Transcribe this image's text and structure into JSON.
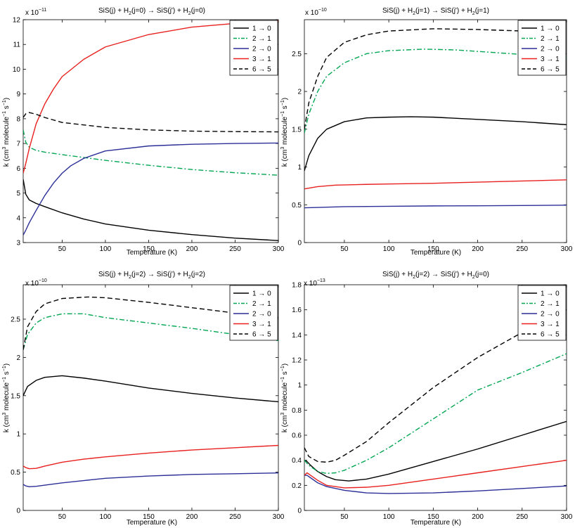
{
  "chart_data": [
    {
      "type": "line",
      "title": "SiS(j) + H2(j=0) → SiS(j') + H2(j=0)",
      "title_parts": {
        "a": "SiS(j) + H",
        "b": "2",
        "c": "(j=0) → SiS(j') + H",
        "d": "2",
        "e": "(j=0)"
      },
      "xlabel": "Temperature (K)",
      "ylabel": {
        "a": "k (cm",
        "b": "3",
        "c": " molecule",
        "d": "−1",
        "e": " s",
        "f": "−1",
        "g": ")"
      },
      "exponent": {
        "base": "x 10",
        "pow": "−11"
      },
      "xlim": [
        5,
        300
      ],
      "ylim": [
        3,
        12
      ],
      "xticks": [
        50,
        100,
        150,
        200,
        250,
        300
      ],
      "yticks": [
        3,
        4,
        5,
        6,
        7,
        8,
        9,
        10,
        11,
        12
      ],
      "ytick_labels": [
        "3",
        "4",
        "5",
        "6",
        "7",
        "8",
        "9",
        "10",
        "11",
        "12"
      ],
      "series": [
        {
          "name": "1 → 0",
          "color": "#000000",
          "dash": "solid",
          "x": [
            5,
            8,
            12,
            20,
            30,
            50,
            75,
            100,
            150,
            200,
            250,
            300
          ],
          "values": [
            5.55,
            4.95,
            4.72,
            4.58,
            4.45,
            4.2,
            3.95,
            3.75,
            3.5,
            3.32,
            3.18,
            3.08
          ]
        },
        {
          "name": "2 → 1",
          "color": "#00a651",
          "dash": "dashdot",
          "x": [
            5,
            8,
            12,
            20,
            30,
            50,
            100,
            150,
            200,
            250,
            300
          ],
          "values": [
            7.55,
            7.05,
            6.85,
            6.72,
            6.65,
            6.55,
            6.32,
            6.12,
            5.95,
            5.82,
            5.72
          ]
        },
        {
          "name": "2 → 0",
          "color": "#2b2f97",
          "dash": "solid",
          "x": [
            5,
            8,
            12,
            20,
            30,
            40,
            50,
            60,
            75,
            100,
            150,
            200,
            250,
            300
          ],
          "values": [
            3.3,
            3.5,
            3.8,
            4.3,
            4.9,
            5.4,
            5.8,
            6.1,
            6.4,
            6.7,
            6.9,
            6.97,
            7.0,
            7.02
          ]
        },
        {
          "name": "3 → 1",
          "color": "#e8201e",
          "dash": "solid",
          "x": [
            5,
            8,
            12,
            20,
            30,
            40,
            50,
            75,
            100,
            150,
            200,
            250,
            300
          ],
          "values": [
            5.8,
            6.2,
            6.8,
            7.8,
            8.6,
            9.2,
            9.7,
            10.4,
            10.9,
            11.4,
            11.7,
            11.85,
            11.95
          ]
        },
        {
          "name": "6 → 5",
          "color": "#000000",
          "dash": "dashed",
          "x": [
            5,
            8,
            12,
            20,
            30,
            50,
            100,
            150,
            200,
            250,
            300
          ],
          "values": [
            8.05,
            8.2,
            8.25,
            8.18,
            8.05,
            7.85,
            7.65,
            7.55,
            7.5,
            7.48,
            7.47
          ]
        }
      ]
    },
    {
      "type": "line",
      "title": "SiS(j) + H2(j=1) → SiS(j') + H2(j=1)",
      "title_parts": {
        "a": "SiS(j) + H",
        "b": "2",
        "c": "(j=1) → SiS(j') + H",
        "d": "2",
        "e": "(j=1)"
      },
      "xlabel": "Temperature (K)",
      "ylabel": {
        "a": "k (cm",
        "b": "3",
        "c": " molecule",
        "d": "−1",
        "e": " s",
        "f": "−1",
        "g": ")"
      },
      "exponent": {
        "base": "x 10",
        "pow": "−10"
      },
      "xlim": [
        5,
        300
      ],
      "ylim": [
        0,
        2.95
      ],
      "xticks": [
        50,
        100,
        150,
        200,
        250,
        300
      ],
      "yticks": [
        0,
        0.5,
        1,
        1.5,
        2,
        2.5
      ],
      "ytick_labels": [
        "0",
        "0.5",
        "1",
        "1.5",
        "2",
        "2.5"
      ],
      "series": [
        {
          "name": "1 → 0",
          "color": "#000000",
          "dash": "solid",
          "x": [
            5,
            10,
            20,
            30,
            50,
            75,
            100,
            125,
            150,
            200,
            250,
            300
          ],
          "values": [
            0.95,
            1.15,
            1.38,
            1.5,
            1.6,
            1.65,
            1.66,
            1.665,
            1.66,
            1.63,
            1.6,
            1.56
          ]
        },
        {
          "name": "2 → 1",
          "color": "#00a651",
          "dash": "dashdot",
          "x": [
            5,
            10,
            20,
            30,
            50,
            75,
            100,
            140,
            175,
            200,
            250,
            300
          ],
          "values": [
            1.45,
            1.7,
            2.0,
            2.2,
            2.38,
            2.5,
            2.54,
            2.56,
            2.55,
            2.53,
            2.49,
            2.45
          ]
        },
        {
          "name": "2 → 0",
          "color": "#2b2f97",
          "dash": "solid",
          "x": [
            5,
            20,
            50,
            100,
            150,
            200,
            250,
            300
          ],
          "values": [
            0.46,
            0.465,
            0.475,
            0.48,
            0.485,
            0.487,
            0.49,
            0.495
          ]
        },
        {
          "name": "3 → 1",
          "color": "#e8201e",
          "dash": "solid",
          "x": [
            5,
            20,
            40,
            75,
            100,
            150,
            200,
            250,
            300
          ],
          "values": [
            0.71,
            0.74,
            0.76,
            0.77,
            0.775,
            0.785,
            0.8,
            0.815,
            0.83
          ]
        },
        {
          "name": "6 → 5",
          "color": "#000000",
          "dash": "dashed",
          "x": [
            5,
            10,
            20,
            30,
            50,
            75,
            100,
            150,
            200,
            250,
            300
          ],
          "values": [
            1.5,
            1.85,
            2.2,
            2.45,
            2.65,
            2.75,
            2.8,
            2.83,
            2.82,
            2.8,
            2.77
          ]
        }
      ]
    },
    {
      "type": "line",
      "title": "SiS(j) + H2(j=2) → SiS(j') + H2(j=2)",
      "title_parts": {
        "a": "SiS(j) + H",
        "b": "2",
        "c": "(j=2) → SiS(j') + H",
        "d": "2",
        "e": "(j=2)"
      },
      "xlabel": "Temperature (K)",
      "ylabel": {
        "a": "k (cm",
        "b": "3",
        "c": " molecule",
        "d": "−1",
        "e": " s",
        "f": "−1",
        "g": ")"
      },
      "exponent": {
        "base": "x 10",
        "pow": "−10"
      },
      "xlim": [
        5,
        300
      ],
      "ylim": [
        0,
        2.95
      ],
      "xticks": [
        50,
        100,
        150,
        200,
        250,
        300
      ],
      "yticks": [
        0,
        0.5,
        1,
        1.5,
        2,
        2.5
      ],
      "ytick_labels": [
        "0",
        "0.5",
        "1",
        "1.5",
        "2",
        "2.5"
      ],
      "series": [
        {
          "name": "1 → 0",
          "color": "#000000",
          "dash": "solid",
          "x": [
            5,
            10,
            20,
            30,
            50,
            75,
            100,
            150,
            200,
            250,
            300
          ],
          "values": [
            1.5,
            1.62,
            1.7,
            1.74,
            1.76,
            1.73,
            1.69,
            1.6,
            1.53,
            1.47,
            1.42
          ]
        },
        {
          "name": "2 → 1",
          "color": "#00a651",
          "dash": "dashdot",
          "x": [
            5,
            10,
            20,
            30,
            50,
            75,
            100,
            150,
            200,
            250,
            300
          ],
          "values": [
            2.1,
            2.3,
            2.45,
            2.52,
            2.57,
            2.57,
            2.52,
            2.45,
            2.38,
            2.3,
            2.22
          ]
        },
        {
          "name": "2 → 0",
          "color": "#2b2f97",
          "dash": "solid",
          "x": [
            5,
            8,
            12,
            20,
            30,
            50,
            75,
            100,
            150,
            200,
            250,
            300
          ],
          "values": [
            0.34,
            0.32,
            0.31,
            0.315,
            0.33,
            0.36,
            0.39,
            0.42,
            0.45,
            0.47,
            0.48,
            0.49
          ]
        },
        {
          "name": "3 → 1",
          "color": "#e8201e",
          "dash": "solid",
          "x": [
            5,
            8,
            12,
            20,
            30,
            50,
            75,
            100,
            150,
            200,
            250,
            300
          ],
          "values": [
            0.58,
            0.56,
            0.545,
            0.55,
            0.58,
            0.63,
            0.67,
            0.7,
            0.75,
            0.79,
            0.82,
            0.85
          ]
        },
        {
          "name": "6 → 5",
          "color": "#000000",
          "dash": "dashed",
          "x": [
            5,
            10,
            20,
            30,
            50,
            80,
            100,
            150,
            200,
            250,
            300
          ],
          "values": [
            2.1,
            2.4,
            2.6,
            2.7,
            2.77,
            2.79,
            2.78,
            2.72,
            2.65,
            2.58,
            2.52
          ]
        }
      ]
    },
    {
      "type": "line",
      "title": "SiS(j) + H2(j=2) → SiS(j') + H2(j=0)",
      "title_parts": {
        "a": "SiS(j) + H",
        "b": "2",
        "c": "(j=2) → SiS(j') + H",
        "d": "2",
        "e": "(j=0)"
      },
      "xlabel": "Temperature (K)",
      "ylabel": {
        "a": "k (cm",
        "b": "3",
        "c": " molecule",
        "d": "−1",
        "e": " s",
        "f": "−1",
        "g": ")"
      },
      "exponent": {
        "base": "x 10",
        "pow": "−13"
      },
      "xlim": [
        5,
        300
      ],
      "ylim": [
        0,
        1.8
      ],
      "xticks": [
        50,
        100,
        150,
        200,
        250,
        300
      ],
      "yticks": [
        0,
        0.2,
        0.4,
        0.6,
        0.8,
        1,
        1.2,
        1.4,
        1.6,
        1.8
      ],
      "ytick_labels": [
        "0",
        "0.2",
        "0.4",
        "0.6",
        "0.8",
        "1",
        "1.2",
        "1.4",
        "1.6",
        "1.8"
      ],
      "series": [
        {
          "name": "1 → 0",
          "color": "#000000",
          "dash": "solid",
          "x": [
            5,
            8,
            12,
            20,
            30,
            40,
            55,
            75,
            100,
            150,
            200,
            250,
            300
          ],
          "values": [
            0.4,
            0.39,
            0.36,
            0.31,
            0.27,
            0.245,
            0.235,
            0.25,
            0.29,
            0.39,
            0.49,
            0.6,
            0.71
          ]
        },
        {
          "name": "2 → 1",
          "color": "#00a651",
          "dash": "dashdot",
          "x": [
            5,
            10,
            20,
            30,
            40,
            50,
            75,
            100,
            150,
            200,
            250,
            300
          ],
          "values": [
            0.4,
            0.36,
            0.31,
            0.295,
            0.3,
            0.32,
            0.4,
            0.5,
            0.73,
            0.96,
            1.1,
            1.25
          ]
        },
        {
          "name": "2 → 0",
          "color": "#2b2f97",
          "dash": "solid",
          "x": [
            5,
            8,
            12,
            20,
            30,
            50,
            75,
            100,
            150,
            200,
            250,
            300
          ],
          "values": [
            0.28,
            0.28,
            0.26,
            0.22,
            0.19,
            0.16,
            0.14,
            0.135,
            0.14,
            0.155,
            0.175,
            0.195
          ]
        },
        {
          "name": "3 → 1",
          "color": "#e8201e",
          "dash": "solid",
          "x": [
            5,
            8,
            12,
            20,
            30,
            50,
            75,
            100,
            150,
            200,
            250,
            300
          ],
          "values": [
            0.28,
            0.3,
            0.28,
            0.24,
            0.2,
            0.18,
            0.185,
            0.2,
            0.25,
            0.3,
            0.35,
            0.4
          ]
        },
        {
          "name": "6 → 5",
          "color": "#000000",
          "dash": "dashed",
          "x": [
            5,
            10,
            20,
            30,
            40,
            50,
            75,
            100,
            150,
            200,
            250,
            300
          ],
          "values": [
            0.5,
            0.43,
            0.39,
            0.385,
            0.4,
            0.44,
            0.55,
            0.7,
            0.98,
            1.22,
            1.42,
            1.6
          ]
        }
      ]
    }
  ]
}
